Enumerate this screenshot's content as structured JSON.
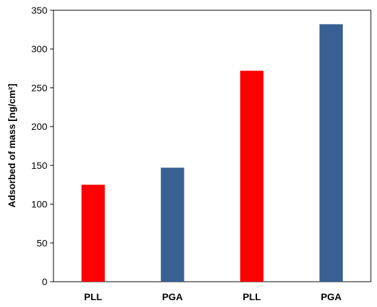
{
  "chart_data": {
    "type": "bar",
    "title": "",
    "xlabel": "",
    "ylabel": "Adsorbed of mass [ng/cm²]",
    "categories": [
      "PLL",
      "PGA",
      "PLL",
      "PGA"
    ],
    "values": [
      125,
      147,
      272,
      332
    ],
    "bar_colors": [
      "#ff0000",
      "#386093",
      "#ff0000",
      "#386093"
    ],
    "ylim": [
      0,
      350
    ],
    "yticks": [
      0,
      50,
      100,
      150,
      200,
      250,
      300,
      350
    ],
    "grid": false,
    "legend": "none"
  }
}
